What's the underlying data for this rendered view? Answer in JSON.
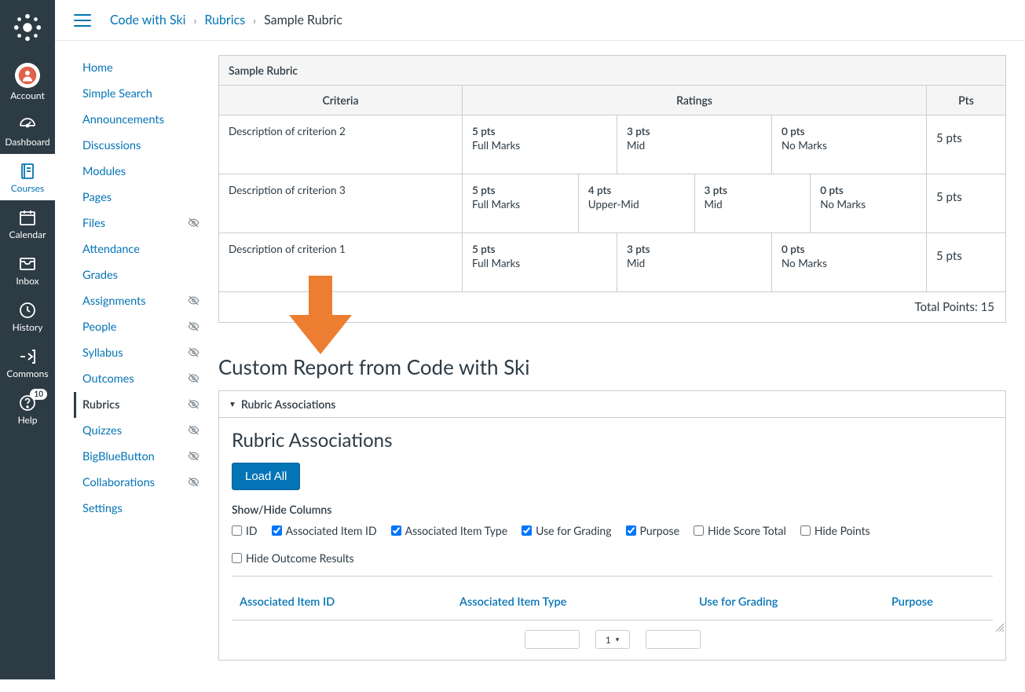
{
  "colors": {
    "nav_bg": "#2d3b45",
    "link": "#0374b5",
    "text": "#2d3b45",
    "border": "#c7cdd1",
    "arrow": "#ed7d31",
    "button_primary_bg": "#0374b5",
    "button_primary_border": "#0363a0"
  },
  "global_nav": [
    {
      "key": "account",
      "label": "Account",
      "badge": null
    },
    {
      "key": "dashboard",
      "label": "Dashboard",
      "badge": null
    },
    {
      "key": "courses",
      "label": "Courses",
      "badge": null,
      "active": true
    },
    {
      "key": "calendar",
      "label": "Calendar",
      "badge": null
    },
    {
      "key": "inbox",
      "label": "Inbox",
      "badge": null
    },
    {
      "key": "history",
      "label": "History",
      "badge": null
    },
    {
      "key": "commons",
      "label": "Commons",
      "badge": null
    },
    {
      "key": "help",
      "label": "Help",
      "badge": "10"
    }
  ],
  "breadcrumb": {
    "items": [
      "Code with Ski",
      "Rubrics"
    ],
    "current": "Sample Rubric"
  },
  "course_nav": [
    {
      "label": "Home",
      "hidden": false,
      "active": false
    },
    {
      "label": "Simple Search",
      "hidden": false,
      "active": false
    },
    {
      "label": "Announcements",
      "hidden": false,
      "active": false
    },
    {
      "label": "Discussions",
      "hidden": false,
      "active": false
    },
    {
      "label": "Modules",
      "hidden": false,
      "active": false
    },
    {
      "label": "Pages",
      "hidden": false,
      "active": false
    },
    {
      "label": "Files",
      "hidden": true,
      "active": false
    },
    {
      "label": "Attendance",
      "hidden": false,
      "active": false
    },
    {
      "label": "Grades",
      "hidden": false,
      "active": false
    },
    {
      "label": "Assignments",
      "hidden": true,
      "active": false
    },
    {
      "label": "People",
      "hidden": true,
      "active": false
    },
    {
      "label": "Syllabus",
      "hidden": true,
      "active": false
    },
    {
      "label": "Outcomes",
      "hidden": true,
      "active": false
    },
    {
      "label": "Rubrics",
      "hidden": true,
      "active": true
    },
    {
      "label": "Quizzes",
      "hidden": true,
      "active": false
    },
    {
      "label": "BigBlueButton",
      "hidden": true,
      "active": false
    },
    {
      "label": "Collaborations",
      "hidden": true,
      "active": false
    },
    {
      "label": "Settings",
      "hidden": false,
      "active": false
    }
  ],
  "rubric": {
    "title": "Sample Rubric",
    "headers": {
      "criteria": "Criteria",
      "ratings": "Ratings",
      "pts": "Pts"
    },
    "rows": [
      {
        "criterion": "Description of criterion 2",
        "ratings": [
          {
            "pts": "5 pts",
            "label": "Full Marks"
          },
          {
            "pts": "3 pts",
            "label": "Mid"
          },
          {
            "pts": "0 pts",
            "label": "No Marks"
          }
        ],
        "pts": "5 pts"
      },
      {
        "criterion": "Description of criterion 3",
        "ratings": [
          {
            "pts": "5 pts",
            "label": "Full Marks"
          },
          {
            "pts": "4 pts",
            "label": "Upper-Mid"
          },
          {
            "pts": "3 pts",
            "label": "Mid"
          },
          {
            "pts": "0 pts",
            "label": "No Marks"
          }
        ],
        "pts": "5 pts"
      },
      {
        "criterion": "Description of criterion 1",
        "ratings": [
          {
            "pts": "5 pts",
            "label": "Full Marks"
          },
          {
            "pts": "3 pts",
            "label": "Mid"
          },
          {
            "pts": "0 pts",
            "label": "No Marks"
          }
        ],
        "pts": "5 pts"
      }
    ],
    "total_label": "Total Points: 15"
  },
  "report": {
    "title": "Custom Report from Code with Ski",
    "details_summary": "Rubric Associations",
    "section_heading": "Rubric Associations",
    "load_button": "Load All",
    "columns_label": "Show/Hide Columns",
    "checkboxes": [
      {
        "label": "ID",
        "checked": false
      },
      {
        "label": "Associated Item ID",
        "checked": true
      },
      {
        "label": "Associated Item Type",
        "checked": true
      },
      {
        "label": "Use for Grading",
        "checked": true
      },
      {
        "label": "Purpose",
        "checked": true
      },
      {
        "label": "Hide Score Total",
        "checked": false
      },
      {
        "label": "Hide Points",
        "checked": false
      },
      {
        "label": "Hide Outcome Results",
        "checked": false
      }
    ],
    "table_headers": [
      "Associated Item ID",
      "Associated Item Type",
      "Use for Grading",
      "Purpose"
    ],
    "pager_current": "1"
  }
}
